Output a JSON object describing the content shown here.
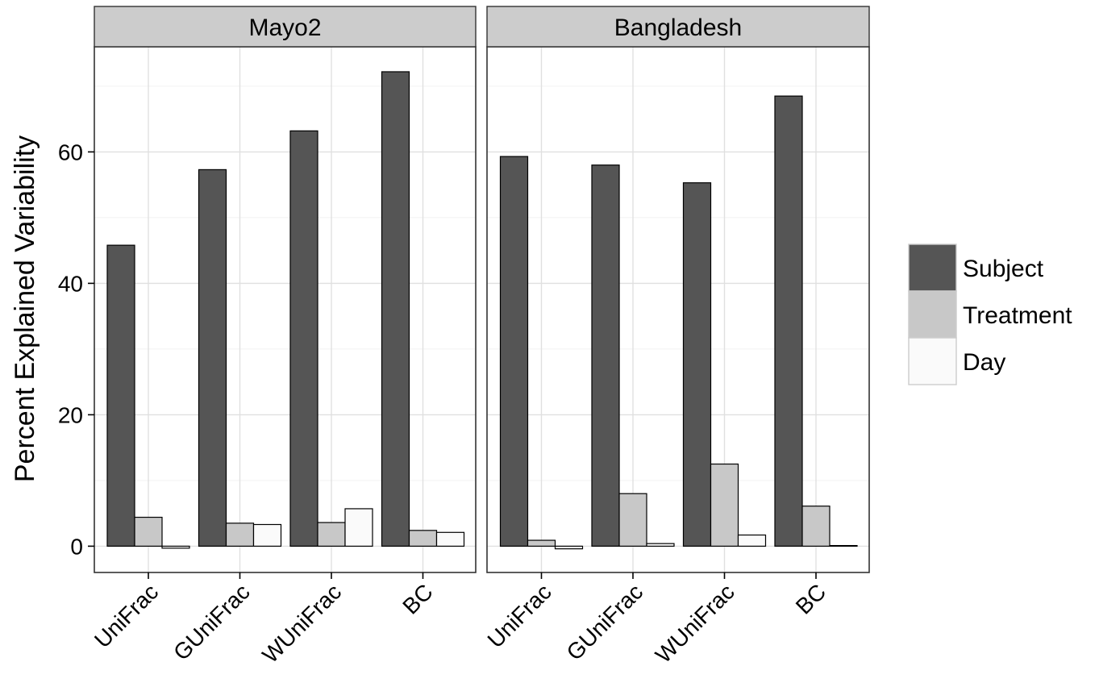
{
  "chart_data": {
    "type": "bar",
    "ylabel": "Percent Explained Variability",
    "xlabel": "",
    "ylim": [
      -4,
      76
    ],
    "yticks": [
      0,
      20,
      40,
      60
    ],
    "categories": [
      "UniFrac",
      "GUniFrac",
      "WUniFrac",
      "BC"
    ],
    "grid": true,
    "legend_position": "right",
    "series_colors": {
      "Subject": "#555555",
      "Treatment": "#c8c8c8",
      "Day": "#fafafa"
    },
    "series_names": [
      "Subject",
      "Treatment",
      "Day"
    ],
    "panels": [
      {
        "title": "Mayo2",
        "series": [
          {
            "name": "Subject",
            "values": [
              45.8,
              57.3,
              63.2,
              72.2
            ]
          },
          {
            "name": "Treatment",
            "values": [
              4.4,
              3.5,
              3.6,
              2.4
            ]
          },
          {
            "name": "Day",
            "values": [
              -0.3,
              3.3,
              5.7,
              2.1
            ]
          }
        ]
      },
      {
        "title": "Bangladesh",
        "series": [
          {
            "name": "Subject",
            "values": [
              59.3,
              58.0,
              55.3,
              68.5
            ]
          },
          {
            "name": "Treatment",
            "values": [
              0.9,
              8.0,
              12.5,
              6.1
            ]
          },
          {
            "name": "Day",
            "values": [
              -0.4,
              0.4,
              1.7,
              0.1
            ]
          }
        ]
      }
    ]
  }
}
